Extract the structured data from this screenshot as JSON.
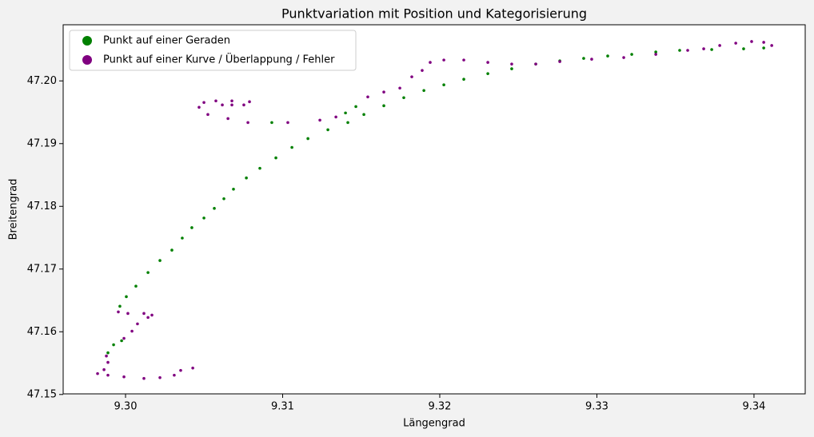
{
  "chart_data": {
    "type": "scatter",
    "title": "Punktvariation mit Position und Kategorisierung",
    "xlabel": "Längengrad",
    "ylabel": "Breitengrad",
    "xlim": [
      9.29603,
      9.34326
    ],
    "ylim": [
      47.1501,
      47.20895
    ],
    "xticks": [
      {
        "value": 9.3,
        "label": "9.30"
      },
      {
        "value": 9.31,
        "label": "9.31"
      },
      {
        "value": 9.32,
        "label": "9.32"
      },
      {
        "value": 9.33,
        "label": "9.33"
      },
      {
        "value": 9.34,
        "label": "9.34"
      }
    ],
    "yticks": [
      47.15,
      47.16,
      47.17,
      47.18,
      47.19,
      {
        "value": 47.2,
        "label": "47.20"
      }
    ],
    "grid": false,
    "legend": "upper left",
    "series": [
      {
        "name": "Punkt auf einer Geraden",
        "color": "#008000",
        "x": [
          9.29888,
          9.29924,
          9.29975,
          9.29964,
          9.30005,
          9.30066,
          9.30143,
          9.30219,
          9.30295,
          9.30361,
          9.30422,
          9.30499,
          9.30565,
          9.30626,
          9.30687,
          9.30769,
          9.30855,
          9.30957,
          9.31059,
          9.31161,
          9.31288,
          9.31415,
          9.31517,
          9.31644,
          9.31771,
          9.31899,
          9.32026,
          9.32153,
          9.32306,
          9.32458,
          9.32611,
          9.32764,
          9.32916,
          9.33069,
          9.33222,
          9.33375,
          9.33527,
          9.33731,
          9.33934,
          9.34062,
          9.31466,
          9.314,
          9.30931
        ],
        "y": [
          47.15665,
          47.15793,
          47.15857,
          47.16407,
          47.1656,
          47.16727,
          47.16944,
          47.17136,
          47.17302,
          47.17494,
          47.1766,
          47.17814,
          47.17967,
          47.18121,
          47.18274,
          47.18453,
          47.18607,
          47.18773,
          47.18939,
          47.1908,
          47.19221,
          47.19336,
          47.19464,
          47.19604,
          47.19732,
          47.19847,
          47.19937,
          47.20026,
          47.20116,
          47.20193,
          47.20269,
          47.2032,
          47.20359,
          47.20397,
          47.20423,
          47.20461,
          47.20487,
          47.205,
          47.20512,
          47.20525,
          47.19591,
          47.19489,
          47.19336
        ]
      },
      {
        "name": "Punkt auf einer Kurve / Überlappung / Fehler",
        "color": "#800080",
        "x": [
          9.30428,
          9.30351,
          9.3031,
          9.30219,
          9.30117,
          9.2999,
          9.29888,
          9.29822,
          9.29863,
          9.29888,
          9.29878,
          9.2999,
          9.30041,
          9.30076,
          9.30143,
          9.30168,
          9.30117,
          9.30015,
          9.29954,
          9.34113,
          9.34062,
          9.33985,
          9.33884,
          9.33782,
          9.3368,
          9.33578,
          9.33375,
          9.33171,
          9.32967,
          9.32764,
          9.32611,
          9.32458,
          9.32306,
          9.32153,
          9.32026,
          9.31939,
          9.31888,
          9.31822,
          9.31746,
          9.31644,
          9.31542,
          9.31339,
          9.31237,
          9.31033,
          9.30779,
          9.30652,
          9.30524,
          9.30468,
          9.30499,
          9.30575,
          9.30677,
          9.30789,
          9.30753,
          9.30677,
          9.30616
        ],
        "y": [
          47.15422,
          47.15384,
          47.15307,
          47.15269,
          47.15256,
          47.15281,
          47.15307,
          47.15333,
          47.15396,
          47.15512,
          47.15614,
          47.15895,
          47.1601,
          47.16126,
          47.16228,
          47.16266,
          47.16292,
          47.16292,
          47.16317,
          47.20564,
          47.20615,
          47.20628,
          47.20602,
          47.20564,
          47.20512,
          47.20487,
          47.20423,
          47.20372,
          47.20346,
          47.20308,
          47.20269,
          47.20269,
          47.20295,
          47.20333,
          47.20333,
          47.20295,
          47.20167,
          47.20065,
          47.19885,
          47.19822,
          47.19745,
          47.19425,
          47.19374,
          47.19336,
          47.19336,
          47.194,
          47.19464,
          47.19579,
          47.19656,
          47.19681,
          47.19681,
          47.19668,
          47.19617,
          47.19617,
          47.19617
        ]
      }
    ]
  }
}
